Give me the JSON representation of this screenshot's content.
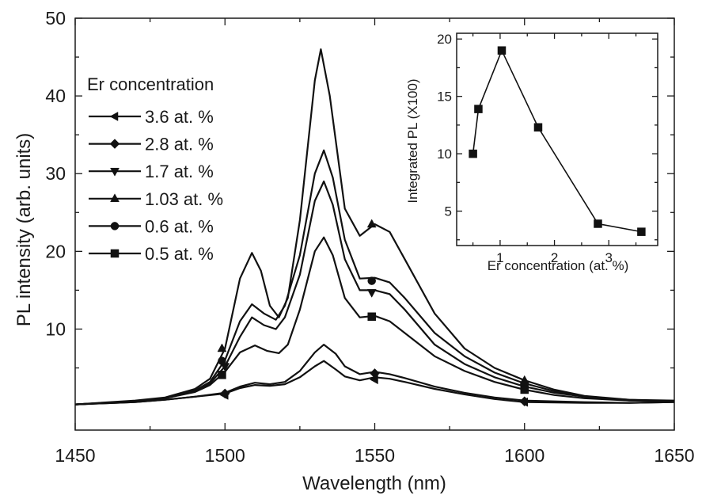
{
  "chart_data": [
    {
      "type": "line",
      "xlabel": "Wavelength (nm)",
      "ylabel": "PL intensity (arb. units)",
      "xlim": [
        1450,
        1650
      ],
      "ylim": [
        -3,
        50
      ],
      "x_ticks": [
        1450,
        1500,
        1550,
        1600,
        1650
      ],
      "y_ticks": [
        10,
        20,
        30,
        40,
        50
      ],
      "grid": false,
      "legend": {
        "title": "Er concentration",
        "position": "top-left"
      },
      "series": [
        {
          "name": "3.6 at. %",
          "marker": "left-triangle",
          "points": [
            [
              1450,
              0.3
            ],
            [
              1470,
              0.6
            ],
            [
              1480,
              0.9
            ],
            [
              1490,
              1.3
            ],
            [
              1500,
              1.7
            ],
            [
              1505,
              2.4
            ],
            [
              1510,
              2.8
            ],
            [
              1515,
              2.7
            ],
            [
              1520,
              2.9
            ],
            [
              1525,
              3.8
            ],
            [
              1530,
              5.2
            ],
            [
              1533,
              5.9
            ],
            [
              1537,
              4.8
            ],
            [
              1540,
              3.9
            ],
            [
              1545,
              3.4
            ],
            [
              1550,
              3.8
            ],
            [
              1555,
              3.6
            ],
            [
              1560,
              3.2
            ],
            [
              1570,
              2.3
            ],
            [
              1580,
              1.6
            ],
            [
              1590,
              1.0
            ],
            [
              1600,
              0.6
            ],
            [
              1620,
              0.5
            ],
            [
              1635,
              0.5
            ],
            [
              1650,
              0.6
            ]
          ],
          "markers": [
            [
              1500,
              1.5
            ],
            [
              1550,
              3.5
            ],
            [
              1600,
              0.6
            ]
          ]
        },
        {
          "name": "2.8 at. %",
          "marker": "diamond",
          "points": [
            [
              1450,
              0.3
            ],
            [
              1470,
              0.6
            ],
            [
              1480,
              0.9
            ],
            [
              1490,
              1.3
            ],
            [
              1500,
              1.8
            ],
            [
              1505,
              2.6
            ],
            [
              1510,
              3.1
            ],
            [
              1515,
              2.9
            ],
            [
              1520,
              3.2
            ],
            [
              1525,
              4.6
            ],
            [
              1530,
              7.0
            ],
            [
              1533,
              8.0
            ],
            [
              1537,
              6.8
            ],
            [
              1540,
              5.2
            ],
            [
              1545,
              4.2
            ],
            [
              1550,
              4.5
            ],
            [
              1555,
              4.2
            ],
            [
              1560,
              3.7
            ],
            [
              1570,
              2.6
            ],
            [
              1580,
              1.8
            ],
            [
              1590,
              1.2
            ],
            [
              1600,
              0.8
            ],
            [
              1620,
              0.6
            ],
            [
              1635,
              0.5
            ],
            [
              1650,
              0.6
            ]
          ],
          "markers": [
            [
              1500,
              1.7
            ],
            [
              1550,
              4.3
            ],
            [
              1600,
              0.7
            ]
          ]
        },
        {
          "name": "1.7 at. %",
          "marker": "down-triangle",
          "points": [
            [
              1450,
              0.3
            ],
            [
              1470,
              0.7
            ],
            [
              1480,
              1.1
            ],
            [
              1490,
              2.0
            ],
            [
              1495,
              3.0
            ],
            [
              1500,
              5.2
            ],
            [
              1505,
              9.0
            ],
            [
              1509,
              11.5
            ],
            [
              1513,
              10.5
            ],
            [
              1517,
              10.0
            ],
            [
              1520,
              11.5
            ],
            [
              1525,
              17.0
            ],
            [
              1530,
              26.5
            ],
            [
              1533,
              29.0
            ],
            [
              1536,
              26.0
            ],
            [
              1540,
              19.0
            ],
            [
              1545,
              15.0
            ],
            [
              1550,
              15.0
            ],
            [
              1555,
              14.5
            ],
            [
              1560,
              12.5
            ],
            [
              1570,
              8.0
            ],
            [
              1580,
              5.5
            ],
            [
              1590,
              3.8
            ],
            [
              1600,
              2.6
            ],
            [
              1610,
              1.8
            ],
            [
              1620,
              1.3
            ],
            [
              1635,
              0.8
            ],
            [
              1650,
              0.7
            ]
          ],
          "markers": [
            [
              1500,
              5.2
            ],
            [
              1549,
              14.7
            ],
            [
              1600,
              2.5
            ]
          ]
        },
        {
          "name": "1.03 at. %",
          "marker": "up-triangle",
          "points": [
            [
              1450,
              0.3
            ],
            [
              1470,
              0.8
            ],
            [
              1480,
              1.2
            ],
            [
              1490,
              2.3
            ],
            [
              1495,
              3.6
            ],
            [
              1500,
              7.5
            ],
            [
              1505,
              16.5
            ],
            [
              1509,
              19.8
            ],
            [
              1512,
              17.5
            ],
            [
              1515,
              13.0
            ],
            [
              1518,
              11.5
            ],
            [
              1521,
              14.0
            ],
            [
              1525,
              24.0
            ],
            [
              1530,
              42.0
            ],
            [
              1532,
              46.0
            ],
            [
              1535,
              40.0
            ],
            [
              1540,
              25.5
            ],
            [
              1545,
              22.0
            ],
            [
              1550,
              23.5
            ],
            [
              1555,
              22.5
            ],
            [
              1560,
              19.0
            ],
            [
              1570,
              12.0
            ],
            [
              1580,
              7.5
            ],
            [
              1590,
              5.0
            ],
            [
              1600,
              3.4
            ],
            [
              1610,
              2.2
            ],
            [
              1620,
              1.4
            ],
            [
              1635,
              0.9
            ],
            [
              1650,
              0.8
            ]
          ],
          "markers": [
            [
              1499,
              7.5
            ],
            [
              1549,
              23.5
            ],
            [
              1600,
              3.4
            ]
          ]
        },
        {
          "name": "0.6 at. %",
          "marker": "circle",
          "points": [
            [
              1450,
              0.3
            ],
            [
              1470,
              0.7
            ],
            [
              1480,
              1.1
            ],
            [
              1490,
              2.1
            ],
            [
              1495,
              3.2
            ],
            [
              1500,
              6.0
            ],
            [
              1505,
              11.0
            ],
            [
              1509,
              13.2
            ],
            [
              1513,
              12.0
            ],
            [
              1517,
              11.2
            ],
            [
              1520,
              13.0
            ],
            [
              1525,
              19.5
            ],
            [
              1530,
              30.0
            ],
            [
              1533,
              33.0
            ],
            [
              1536,
              29.5
            ],
            [
              1540,
              21.5
            ],
            [
              1545,
              16.5
            ],
            [
              1550,
              16.6
            ],
            [
              1555,
              16.0
            ],
            [
              1560,
              14.0
            ],
            [
              1570,
              9.5
            ],
            [
              1580,
              6.5
            ],
            [
              1590,
              4.4
            ],
            [
              1600,
              3.0
            ],
            [
              1610,
              2.0
            ],
            [
              1620,
              1.3
            ],
            [
              1635,
              0.9
            ],
            [
              1650,
              0.7
            ]
          ],
          "markers": [
            [
              1499,
              5.9
            ],
            [
              1549,
              16.2
            ],
            [
              1600,
              3.0
            ]
          ]
        },
        {
          "name": "0.5 at. %",
          "marker": "square",
          "points": [
            [
              1450,
              0.3
            ],
            [
              1470,
              0.7
            ],
            [
              1480,
              1.1
            ],
            [
              1490,
              1.9
            ],
            [
              1495,
              2.8
            ],
            [
              1500,
              4.5
            ],
            [
              1505,
              7.0
            ],
            [
              1510,
              7.9
            ],
            [
              1514,
              7.2
            ],
            [
              1518,
              6.9
            ],
            [
              1521,
              8.0
            ],
            [
              1525,
              12.5
            ],
            [
              1530,
              20.0
            ],
            [
              1533,
              21.8
            ],
            [
              1536,
              19.5
            ],
            [
              1540,
              14.0
            ],
            [
              1545,
              11.5
            ],
            [
              1550,
              11.7
            ],
            [
              1555,
              11.0
            ],
            [
              1560,
              9.5
            ],
            [
              1570,
              6.5
            ],
            [
              1580,
              4.6
            ],
            [
              1590,
              3.2
            ],
            [
              1600,
              2.2
            ],
            [
              1610,
              1.5
            ],
            [
              1620,
              1.1
            ],
            [
              1635,
              0.8
            ],
            [
              1650,
              0.7
            ]
          ],
          "markers": [
            [
              1499,
              4.1
            ],
            [
              1549,
              11.6
            ],
            [
              1600,
              2.2
            ]
          ]
        }
      ]
    },
    {
      "type": "line",
      "inset": true,
      "xlabel": "Er concentration (at. %)",
      "ylabel": "Integrated PL (X100)",
      "xlim": [
        0.2,
        3.9
      ],
      "ylim": [
        2,
        20.5
      ],
      "x_ticks": [
        1,
        2,
        3
      ],
      "y_ticks": [
        5,
        10,
        15,
        20
      ],
      "marker": "square",
      "x": [
        0.5,
        0.6,
        1.03,
        1.7,
        2.8,
        3.6
      ],
      "y": [
        10.0,
        13.9,
        19.0,
        12.3,
        3.9,
        3.2
      ]
    }
  ]
}
